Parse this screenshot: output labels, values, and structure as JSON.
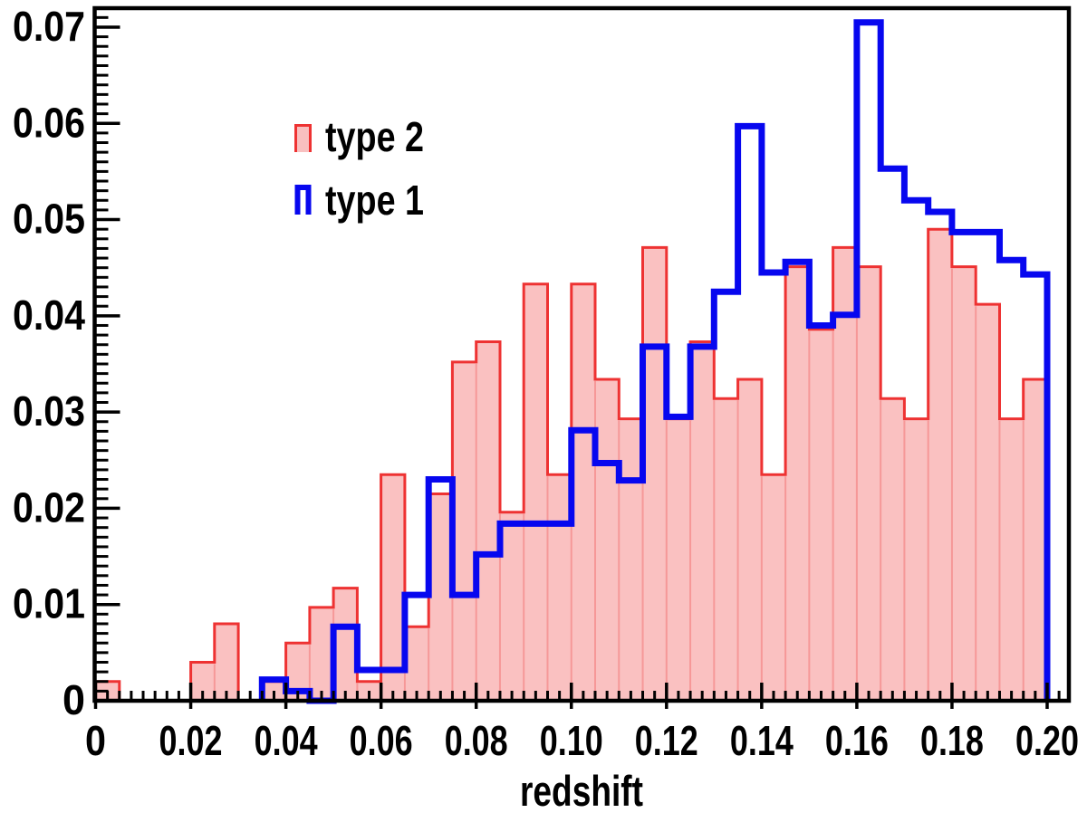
{
  "chart_data": {
    "type": "histogram",
    "subtype": "step-overlay",
    "xlabel": "redshift",
    "ylabel": "",
    "title": "",
    "bin_start": 0,
    "bin_width": 0.005,
    "n_bins": 40,
    "x_axis": {
      "min": 0,
      "max_frame": 0.2045,
      "major_tick_step": 0.02,
      "minor_tick_step": 0.0025,
      "tick_values": [
        0,
        0.02,
        0.04,
        0.06,
        0.08,
        0.1,
        0.12,
        0.14,
        0.16,
        0.18,
        0.2
      ],
      "tick_labels": [
        "0",
        "0.02",
        "0.04",
        "0.06",
        "0.08",
        "0.10",
        "0.12",
        "0.14",
        "0.16",
        "0.18",
        "0.20"
      ]
    },
    "y_axis": {
      "min": 0,
      "max_frame": 0.0721,
      "major_tick_step": 0.01,
      "minor_tick_step": 0.001,
      "tick_values": [
        0,
        0.01,
        0.02,
        0.03,
        0.04,
        0.05,
        0.06,
        0.07
      ],
      "tick_labels": [
        "0",
        "0.01",
        "0.02",
        "0.03",
        "0.04",
        "0.05",
        "0.06",
        "0.07"
      ]
    },
    "grid": false,
    "legend_position": "upper-left-inside",
    "series": [
      {
        "name": "type 2",
        "style": "filled-step",
        "line_color": "#ee3232",
        "fill_color": "rgba(243,100,100,0.40)",
        "line_width": 3,
        "values": [
          0.002,
          0,
          0,
          0,
          0.004,
          0.008,
          0,
          0.002,
          0.006,
          0.0097,
          0.0117,
          0.002,
          0.0235,
          0.0077,
          0.0215,
          0.0352,
          0.0373,
          0.0196,
          0.0433,
          0.0235,
          0.0433,
          0.0334,
          0.0293,
          0.0471,
          0.0293,
          0.0373,
          0.0314,
          0.0334,
          0.0235,
          0.0451,
          0.0386,
          0.0471,
          0.0451,
          0.0314,
          0.0293,
          0.049,
          0.0451,
          0.0412,
          0.0293,
          0.0334
        ]
      },
      {
        "name": "type 1",
        "style": "outline-step",
        "line_color": "#0707ef",
        "fill_color": "none",
        "line_width": 7,
        "values": [
          0,
          0,
          0,
          0,
          0,
          0,
          0,
          0.0022,
          0.001,
          0,
          0.0077,
          0.0032,
          0.0032,
          0.011,
          0.023,
          0.011,
          0.0152,
          0.0184,
          0.0184,
          0.0184,
          0.0281,
          0.0247,
          0.0229,
          0.0368,
          0.0295,
          0.0368,
          0.0425,
          0.0597,
          0.0445,
          0.0456,
          0.039,
          0.0401,
          0.0705,
          0.0553,
          0.052,
          0.0508,
          0.0487,
          0.0487,
          0.0458,
          0.0443
        ]
      }
    ],
    "legend": {
      "entries": [
        {
          "label": "type 2",
          "series_index": 0
        },
        {
          "label": "type 1",
          "series_index": 1
        }
      ]
    }
  },
  "frame_color": "#000000",
  "background_color": "#ffffff"
}
